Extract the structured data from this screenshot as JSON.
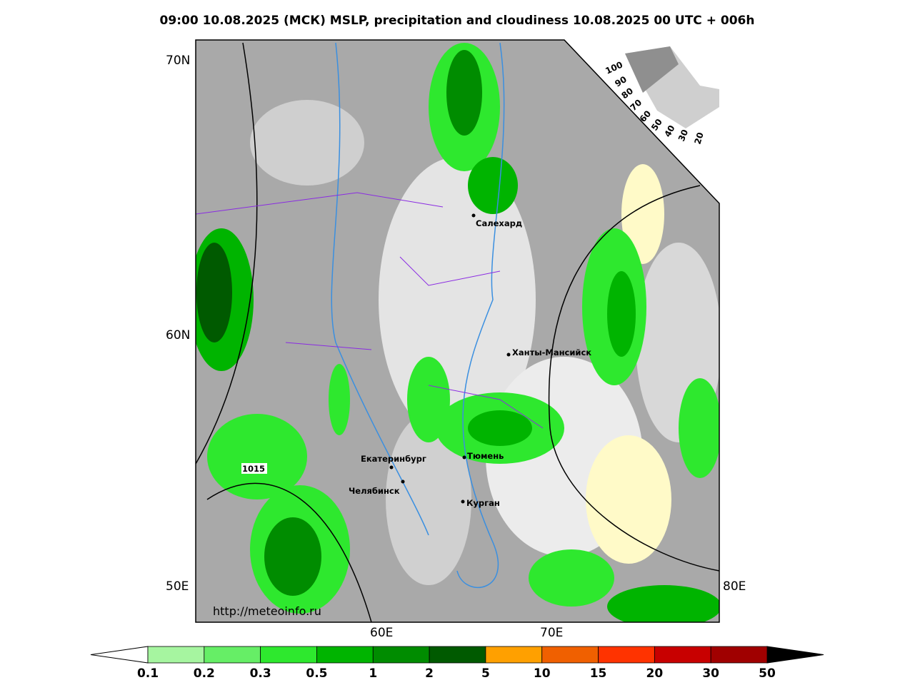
{
  "header": {
    "title": "09:00 10.08.2025 (МСК) MSLP, precipitation and cloudiness 10.08.2025 00 UTC + 006h"
  },
  "map": {
    "lat_labels": [
      "70N",
      "60N"
    ],
    "lon_labels": [
      "50E",
      "60E",
      "70E",
      "80E"
    ],
    "cities": [
      "Салехард",
      "Ханты-Мансийск",
      "Тюмень",
      "Екатеринбург",
      "Челябинск",
      "Курган"
    ],
    "isobar_label": "1015",
    "credit": "http://meteoinfo.ru",
    "cloud_scale": [
      "100",
      "90",
      "80",
      "70",
      "60",
      "50",
      "40",
      "30",
      "20"
    ]
  },
  "colorbar": {
    "colors": [
      "#a6f5a0",
      "#66ee66",
      "#2ee82e",
      "#00b400",
      "#008c00",
      "#005a00",
      "#ffa000",
      "#f06000",
      "#ff3300",
      "#c80000",
      "#a00000"
    ],
    "labels": [
      "0.1",
      "0.2",
      "0.3",
      "0.5",
      "1",
      "2",
      "5",
      "10",
      "15",
      "20",
      "30",
      "50"
    ]
  }
}
